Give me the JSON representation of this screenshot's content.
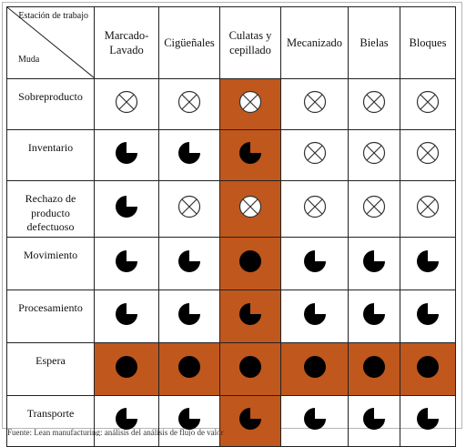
{
  "header": {
    "corner_top": "Estación de trabajo",
    "corner_bottom": "Muda",
    "stations": [
      "Marcado-Lavado",
      "Cigüeñales",
      "Culatas y cepillado",
      "Mecanizado",
      "Bielas",
      "Bloques"
    ]
  },
  "rows": [
    {
      "label": "Sobreproducto",
      "height": 56,
      "cells": [
        "x",
        "x",
        "x",
        "x",
        "x",
        "x"
      ],
      "orange": [
        false,
        false,
        true,
        false,
        false,
        false
      ]
    },
    {
      "label": "Inventario",
      "height": 56,
      "cells": [
        "p75",
        "p75",
        "p75",
        "x",
        "x",
        "x"
      ],
      "orange": [
        false,
        false,
        true,
        false,
        false,
        false
      ]
    },
    {
      "label": "Rechazo de producto defectuoso",
      "height": 62,
      "cells": [
        "p75",
        "x",
        "x",
        "x",
        "x",
        "x"
      ],
      "orange": [
        false,
        false,
        true,
        false,
        false,
        false
      ]
    },
    {
      "label": "Movimiento",
      "height": 58,
      "cells": [
        "p75",
        "p75",
        "full",
        "p75",
        "p75",
        "p75"
      ],
      "orange": [
        false,
        false,
        true,
        false,
        false,
        false
      ]
    },
    {
      "label": "Procesamiento",
      "height": 58,
      "cells": [
        "p75",
        "p75",
        "p75",
        "p75",
        "p75",
        "p75"
      ],
      "orange": [
        false,
        false,
        true,
        false,
        false,
        false
      ]
    },
    {
      "label": "Espera",
      "height": 58,
      "cells": [
        "full",
        "full",
        "full",
        "full",
        "full",
        "full"
      ],
      "orange": [
        true,
        true,
        true,
        true,
        true,
        true
      ]
    },
    {
      "label": "Transporte",
      "height": 56,
      "cells": [
        "p75",
        "p75",
        "p75",
        "p75",
        "p75",
        "p75"
      ],
      "orange": [
        false,
        false,
        true,
        false,
        false,
        false
      ]
    }
  ],
  "footer_text": "Fuente: Lean manufacturing: análisis del análisis de flujo de valor"
}
